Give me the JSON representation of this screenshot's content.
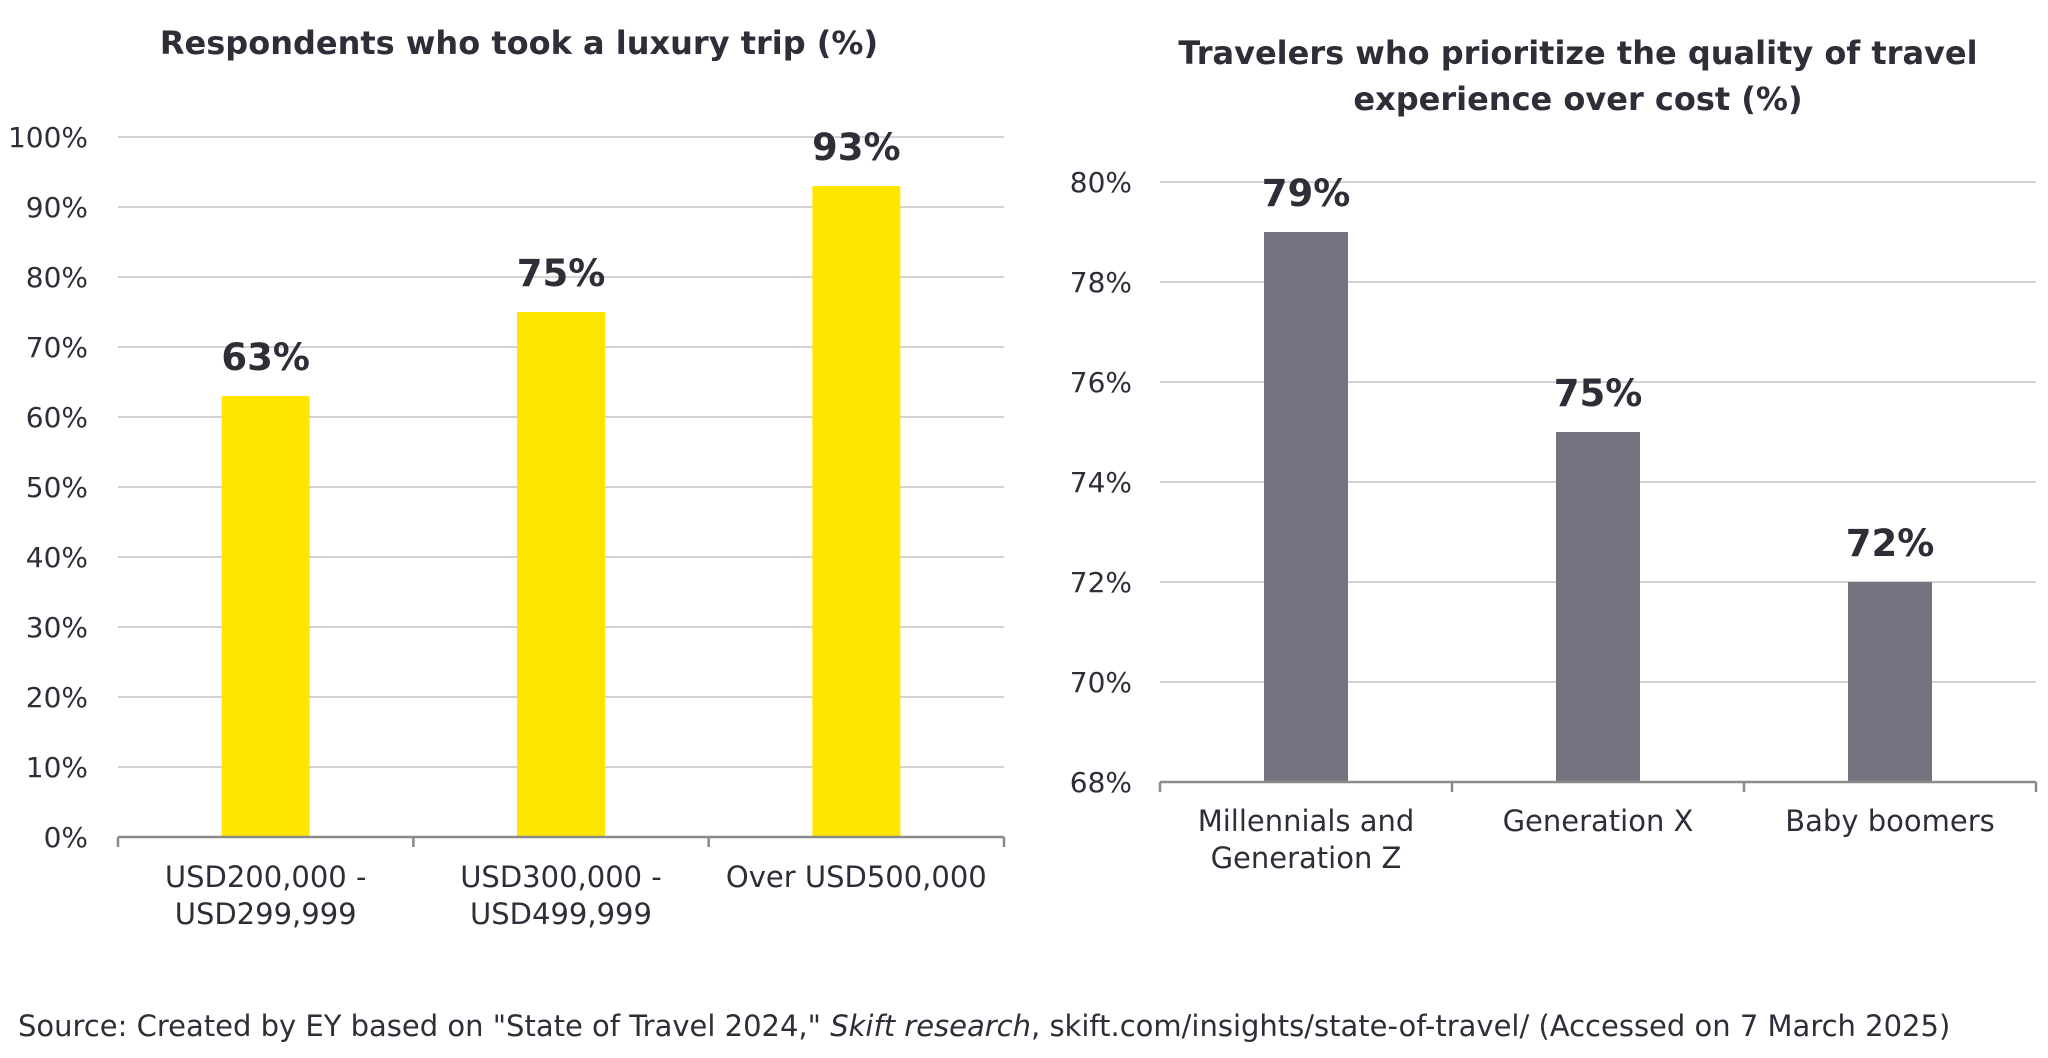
{
  "source": {
    "before": "Source: Created by EY based on \"State of Travel 2024,\" ",
    "italic": "Skift research",
    "after": ", skift.com/insights/state-of-travel/ (Accessed on 7 March 2025)"
  },
  "chart_data": [
    {
      "type": "bar",
      "title": [
        "Respondents who took a luxury trip (%)"
      ],
      "categories": [
        [
          "USD200,000 -",
          "USD299,999"
        ],
        [
          "USD300,000 -",
          "USD499,999"
        ],
        [
          "Over USD500,000"
        ]
      ],
      "values": [
        63,
        75,
        93
      ],
      "data_labels": [
        "63%",
        "75%",
        "93%"
      ],
      "ylim": [
        0,
        100
      ],
      "yticks": [
        0,
        10,
        20,
        30,
        40,
        50,
        60,
        70,
        80,
        90,
        100
      ],
      "ytick_labels": [
        "0%",
        "10%",
        "20%",
        "30%",
        "40%",
        "50%",
        "60%",
        "70%",
        "80%",
        "90%",
        "100%"
      ],
      "grid": true,
      "color": "#ffe600"
    },
    {
      "type": "bar",
      "title": [
        "Travelers who prioritize the quality of travel",
        "experience over cost (%)"
      ],
      "categories": [
        [
          "Millennials and",
          "Generation Z"
        ],
        [
          "Generation X"
        ],
        [
          "Baby boomers"
        ]
      ],
      "values": [
        79,
        75,
        72
      ],
      "data_labels": [
        "79%",
        "75%",
        "72%"
      ],
      "ylim": [
        68,
        80
      ],
      "yticks": [
        68,
        70,
        72,
        74,
        76,
        78,
        80
      ],
      "ytick_labels": [
        "68%",
        "70%",
        "72%",
        "74%",
        "76%",
        "78%",
        "80%"
      ],
      "grid": true,
      "color": "#747480"
    }
  ]
}
